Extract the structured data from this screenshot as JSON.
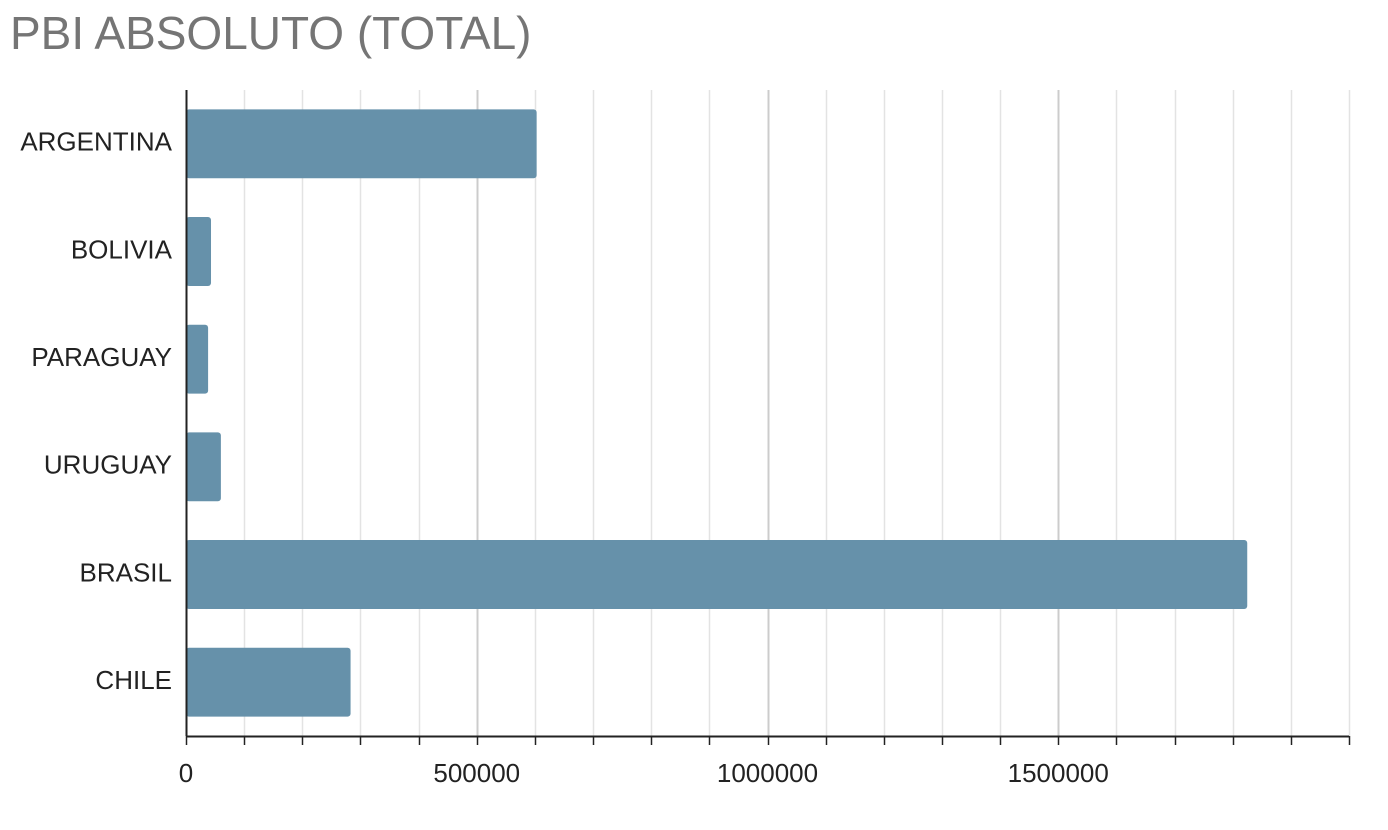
{
  "chart_data": {
    "type": "bar",
    "orientation": "horizontal",
    "title": "PBI ABSOLUTO (TOTAL)",
    "xlabel": "",
    "ylabel": "",
    "categories": [
      "ARGENTINA",
      "BOLIVIA",
      "PARAGUAY",
      "URUGUAY",
      "BRASIL",
      "CHILE"
    ],
    "values": [
      603000,
      43000,
      38000,
      60000,
      1825000,
      283000
    ],
    "xlim": [
      0,
      2000000
    ],
    "major_ticks": [
      0,
      500000,
      1000000,
      1500000
    ],
    "tick_labels": [
      "0",
      "500000",
      "1000000",
      "1500000"
    ],
    "minor_tick_step": 100000,
    "grid": true,
    "legend": "none",
    "bar_color": "#6691aa"
  }
}
